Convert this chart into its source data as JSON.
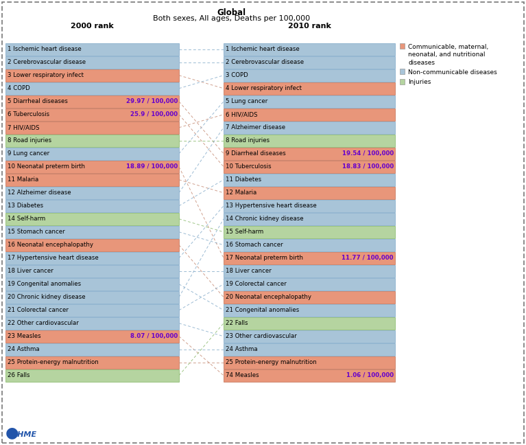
{
  "title_line1": "Global",
  "title_line2": "Both sexes, All ages, Deaths per 100,000",
  "col1_label": "2000 rank",
  "col2_label": "2010 rank",
  "left_items": [
    {
      "rank": 1,
      "name": "Ischemic heart disease",
      "color": "blue",
      "rate": null
    },
    {
      "rank": 2,
      "name": "Cerebrovascular disease",
      "color": "blue",
      "rate": null
    },
    {
      "rank": 3,
      "name": "Lower respiratory infect",
      "color": "orange",
      "rate": null
    },
    {
      "rank": 4,
      "name": "COPD",
      "color": "blue",
      "rate": null
    },
    {
      "rank": 5,
      "name": "Diarrheal diseases",
      "color": "orange",
      "rate": "29.97 / 100,000"
    },
    {
      "rank": 6,
      "name": "Tuberculosis",
      "color": "orange",
      "rate": "25.9 / 100,000"
    },
    {
      "rank": 7,
      "name": "HIV/AIDS",
      "color": "orange",
      "rate": null
    },
    {
      "rank": 8,
      "name": "Road injuries",
      "color": "green",
      "rate": null
    },
    {
      "rank": 9,
      "name": "Lung cancer",
      "color": "blue",
      "rate": null
    },
    {
      "rank": 10,
      "name": "Neonatal preterm birth",
      "color": "orange",
      "rate": "18.89 / 100,000"
    },
    {
      "rank": 11,
      "name": "Malaria",
      "color": "orange",
      "rate": null
    },
    {
      "rank": 12,
      "name": "Alzheimer disease",
      "color": "blue",
      "rate": null
    },
    {
      "rank": 13,
      "name": "Diabetes",
      "color": "blue",
      "rate": null
    },
    {
      "rank": 14,
      "name": "Self-harm",
      "color": "green",
      "rate": null
    },
    {
      "rank": 15,
      "name": "Stomach cancer",
      "color": "blue",
      "rate": null
    },
    {
      "rank": 16,
      "name": "Neonatal encephalopathy",
      "color": "orange",
      "rate": null
    },
    {
      "rank": 17,
      "name": "Hypertensive heart disease",
      "color": "blue",
      "rate": null
    },
    {
      "rank": 18,
      "name": "Liver cancer",
      "color": "blue",
      "rate": null
    },
    {
      "rank": 19,
      "name": "Congenital anomalies",
      "color": "blue",
      "rate": null
    },
    {
      "rank": 20,
      "name": "Chronic kidney disease",
      "color": "blue",
      "rate": null
    },
    {
      "rank": 21,
      "name": "Colorectal cancer",
      "color": "blue",
      "rate": null
    },
    {
      "rank": 22,
      "name": "Other cardiovascular",
      "color": "blue",
      "rate": null
    },
    {
      "rank": 23,
      "name": "Measles",
      "color": "orange",
      "rate": "8.07 / 100,000"
    },
    {
      "rank": 24,
      "name": "Asthma",
      "color": "blue",
      "rate": null
    },
    {
      "rank": 25,
      "name": "Protein-energy malnutrition",
      "color": "orange",
      "rate": null
    },
    {
      "rank": 26,
      "name": "Falls",
      "color": "green",
      "rate": null
    }
  ],
  "right_items": [
    {
      "rank": 1,
      "name": "Ischemic heart disease",
      "color": "blue",
      "rate": null
    },
    {
      "rank": 2,
      "name": "Cerebrovascular disease",
      "color": "blue",
      "rate": null
    },
    {
      "rank": 3,
      "name": "COPD",
      "color": "blue",
      "rate": null
    },
    {
      "rank": 4,
      "name": "Lower respiratory infect",
      "color": "orange",
      "rate": null
    },
    {
      "rank": 5,
      "name": "Lung cancer",
      "color": "blue",
      "rate": null
    },
    {
      "rank": 6,
      "name": "HIV/AIDS",
      "color": "orange",
      "rate": null
    },
    {
      "rank": 7,
      "name": "Alzheimer disease",
      "color": "blue",
      "rate": null
    },
    {
      "rank": 8,
      "name": "Road injuries",
      "color": "green",
      "rate": null
    },
    {
      "rank": 9,
      "name": "Diarrheal diseases",
      "color": "orange",
      "rate": "19.54 / 100,000"
    },
    {
      "rank": 10,
      "name": "Tuberculosis",
      "color": "orange",
      "rate": "18.83 / 100,000"
    },
    {
      "rank": 11,
      "name": "Diabetes",
      "color": "blue",
      "rate": null
    },
    {
      "rank": 12,
      "name": "Malaria",
      "color": "orange",
      "rate": null
    },
    {
      "rank": 13,
      "name": "Hypertensive heart disease",
      "color": "blue",
      "rate": null
    },
    {
      "rank": 14,
      "name": "Chronic kidney disease",
      "color": "blue",
      "rate": null
    },
    {
      "rank": 15,
      "name": "Self-harm",
      "color": "green",
      "rate": null
    },
    {
      "rank": 16,
      "name": "Stomach cancer",
      "color": "blue",
      "rate": null
    },
    {
      "rank": 17,
      "name": "Neonatal preterm birth",
      "color": "orange",
      "rate": "11.77 / 100,000"
    },
    {
      "rank": 18,
      "name": "Liver cancer",
      "color": "blue",
      "rate": null
    },
    {
      "rank": 19,
      "name": "Colorectal cancer",
      "color": "blue",
      "rate": null
    },
    {
      "rank": 20,
      "name": "Neonatal encephalopathy",
      "color": "orange",
      "rate": null
    },
    {
      "rank": 21,
      "name": "Congenital anomalies",
      "color": "blue",
      "rate": null
    },
    {
      "rank": 22,
      "name": "Falls",
      "color": "green",
      "rate": null
    },
    {
      "rank": 23,
      "name": "Other cardiovascular",
      "color": "blue",
      "rate": null
    },
    {
      "rank": 24,
      "name": "Asthma",
      "color": "blue",
      "rate": null
    },
    {
      "rank": 25,
      "name": "Protein-energy malnutrition",
      "color": "orange",
      "rate": null
    },
    {
      "rank": 74,
      "name": "Measles",
      "color": "orange",
      "rate": "1.06 / 100,000"
    }
  ],
  "colors": {
    "orange": "#E8967A",
    "blue": "#A8C4D8",
    "green": "#B5D4A0",
    "orange_edge": "#C87A60",
    "blue_edge": "#8AAFCC",
    "green_edge": "#8EBC72"
  },
  "conn_colors": {
    "orange": "#C8907A",
    "blue": "#8AAFCC",
    "green": "#8EBC72"
  },
  "legend": [
    {
      "label": "Communicable, maternal,\nneonatal, and nutritional\ndiseases",
      "color": "#E8967A"
    },
    {
      "label": "Non-communicable diseases",
      "color": "#A8C4D8"
    },
    {
      "label": "Injuries",
      "color": "#B5D4A0"
    }
  ]
}
